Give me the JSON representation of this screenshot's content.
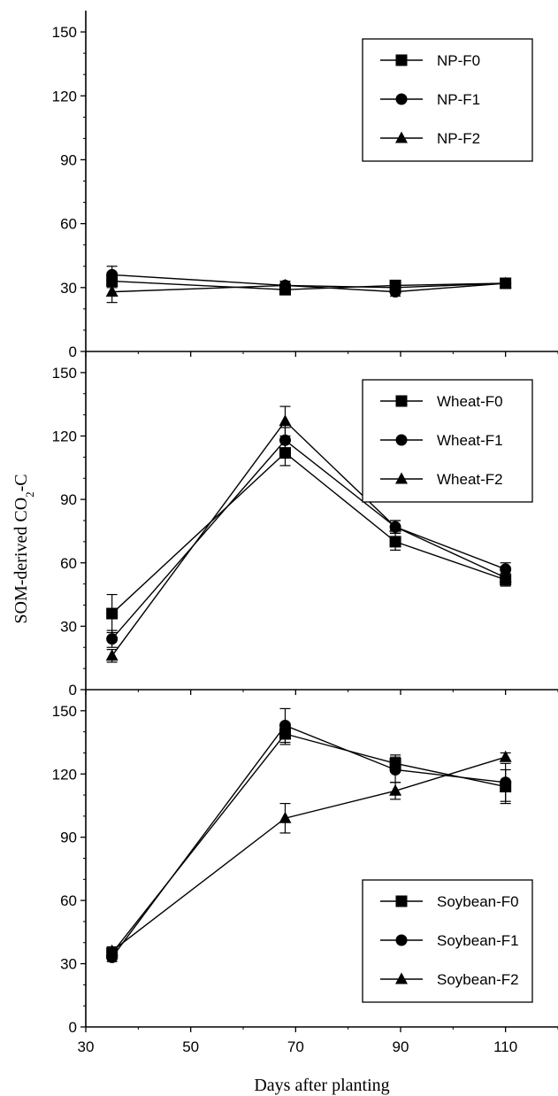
{
  "chart_data": {
    "type": "line",
    "ylabel_main": "SOM-derived CO",
    "ylabel_sub": "2",
    "ylabel_tail": "-C",
    "xlabel": "Days after planting",
    "xlim": [
      30,
      120
    ],
    "xticks": [
      30,
      50,
      70,
      90,
      110
    ],
    "ylim": [
      0,
      160
    ],
    "yticks": [
      0,
      30,
      60,
      90,
      120,
      150
    ],
    "panels": [
      {
        "legend_position": "top-right",
        "series": [
          {
            "name": "NP-F0",
            "marker": "square",
            "x": [
              35,
              68,
              89,
              110
            ],
            "y": [
              33,
              29,
              31,
              32
            ],
            "err": [
              3,
              2,
              2,
              2
            ]
          },
          {
            "name": "NP-F1",
            "marker": "circle",
            "x": [
              35,
              68,
              89,
              110
            ],
            "y": [
              36,
              31,
              28,
              32
            ],
            "err": [
              4,
              2,
              2,
              2
            ]
          },
          {
            "name": "NP-F2",
            "marker": "triangle",
            "x": [
              35,
              68,
              89,
              110
            ],
            "y": [
              28,
              31,
              30,
              32
            ],
            "err": [
              5,
              2,
              2,
              2
            ]
          }
        ]
      },
      {
        "legend_position": "top-right",
        "series": [
          {
            "name": "Wheat-F0",
            "marker": "square",
            "x": [
              35,
              68,
              89,
              110
            ],
            "y": [
              36,
              112,
              70,
              52
            ],
            "err": [
              9,
              6,
              4,
              3
            ]
          },
          {
            "name": "Wheat-F1",
            "marker": "circle",
            "x": [
              35,
              68,
              89,
              110
            ],
            "y": [
              24,
              118,
              77,
              57
            ],
            "err": [
              4,
              6,
              3,
              3
            ]
          },
          {
            "name": "Wheat-F2",
            "marker": "triangle",
            "x": [
              35,
              68,
              89,
              110
            ],
            "y": [
              16,
              127,
              77,
              53
            ],
            "err": [
              3,
              7,
              3,
              3
            ]
          }
        ]
      },
      {
        "legend_position": "bottom-right",
        "series": [
          {
            "name": "Soybean-F0",
            "marker": "square",
            "x": [
              35,
              68,
              89,
              110
            ],
            "y": [
              35,
              139,
              125,
              114
            ],
            "err": [
              2,
              5,
              4,
              8
            ]
          },
          {
            "name": "Soybean-F1",
            "marker": "circle",
            "x": [
              35,
              68,
              89,
              110
            ],
            "y": [
              33,
              143,
              122,
              116
            ],
            "err": [
              2,
              8,
              6,
              9
            ]
          },
          {
            "name": "Soybean-F2",
            "marker": "triangle",
            "x": [
              35,
              68,
              89,
              110
            ],
            "y": [
              36,
              99,
              112,
              128
            ],
            "err": [
              2,
              7,
              4,
              2
            ]
          }
        ]
      }
    ]
  }
}
